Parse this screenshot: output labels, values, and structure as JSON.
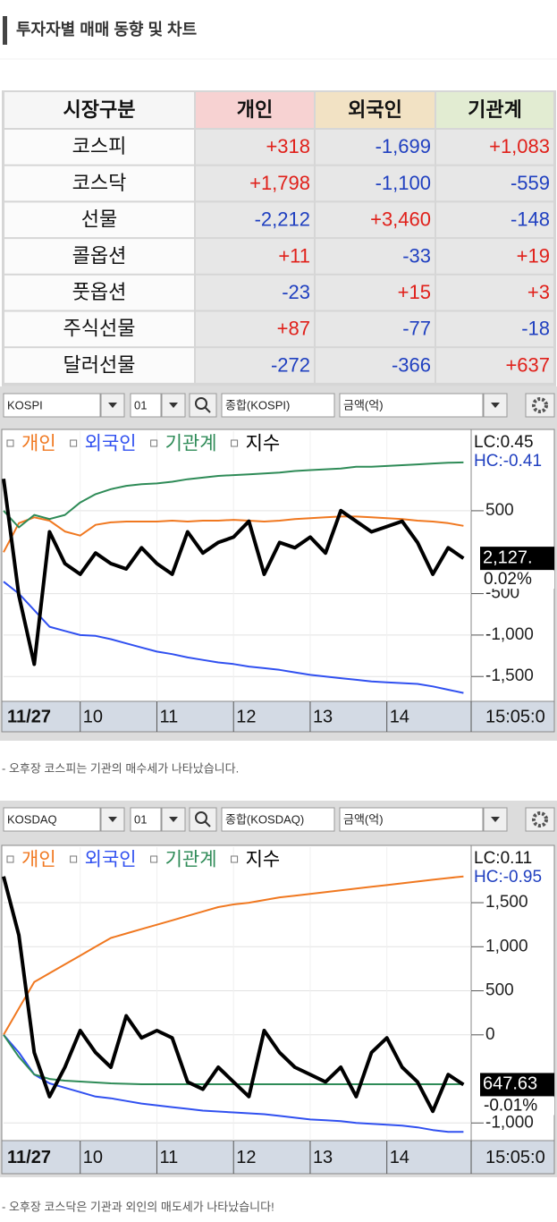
{
  "header": {
    "title": "투자자별 매매 동향 및 차트"
  },
  "table": {
    "columns": [
      "시장구분",
      "개인",
      "외국인",
      "기관계"
    ],
    "rows": [
      [
        "코스피",
        "+318",
        "-1,699",
        "+1,083"
      ],
      [
        "코스닥",
        "+1,798",
        "-1,100",
        "-559"
      ],
      [
        "선물",
        "-2,212",
        "+3,460",
        "-148"
      ],
      [
        "콜옵션",
        "+11",
        "-33",
        "+19"
      ],
      [
        "풋옵션",
        "-23",
        "+15",
        "+3"
      ],
      [
        "주식선물",
        "+87",
        "-77",
        "-18"
      ],
      [
        "달러선물",
        "-272",
        "-366",
        "+637"
      ]
    ]
  },
  "toolbars": [
    {
      "market": "KOSPI",
      "period": "01",
      "index_name": "종합(KOSPI)",
      "unit": "금액(억)"
    },
    {
      "market": "KOSDAQ",
      "period": "01",
      "index_name": "종합(KOSDAQ)",
      "unit": "금액(억)"
    }
  ],
  "chart_data": [
    {
      "type": "line",
      "x": [
        9.0,
        9.2,
        9.4,
        9.6,
        9.8,
        10.0,
        10.2,
        10.4,
        10.6,
        10.8,
        11.0,
        11.2,
        11.4,
        11.6,
        11.8,
        12.0,
        12.2,
        12.4,
        12.6,
        12.8,
        13.0,
        13.2,
        13.4,
        13.6,
        13.8,
        14.0,
        14.2,
        14.4,
        14.6,
        14.8,
        15.0
      ],
      "xlim": [
        9,
        15.1
      ],
      "xticks": [
        10,
        11,
        12,
        13,
        14
      ],
      "ylim": [
        -1800,
        1460
      ],
      "yticks": [
        500,
        -500,
        {
          "value": -1000,
          "label": "-1,000"
        },
        {
          "value": -1500,
          "label": "-1,500"
        }
      ],
      "y2lim": [
        2100,
        2151
      ],
      "grid": true,
      "date_label": "11/27",
      "time_label": "15:05:0",
      "lc_label": "LC:0.45",
      "hc_label": "HC:-0.41",
      "last_label": "2,127.",
      "change_label": "0.02%",
      "series": [
        {
          "name": "개인",
          "color": "#f07820",
          "values": [
            0,
            350,
            420,
            380,
            250,
            200,
            330,
            360,
            370,
            370,
            370,
            380,
            370,
            380,
            380,
            390,
            380,
            370,
            380,
            400,
            410,
            420,
            430,
            430,
            420,
            410,
            400,
            380,
            370,
            350,
            318
          ]
        },
        {
          "name": "외국인",
          "color": "#3050f0",
          "values": [
            -356,
            -500,
            -700,
            -900,
            -950,
            -1000,
            -1010,
            -1050,
            -1100,
            -1150,
            -1200,
            -1230,
            -1270,
            -1300,
            -1330,
            -1350,
            -1380,
            -1400,
            -1420,
            -1450,
            -1480,
            -1500,
            -1520,
            -1540,
            -1560,
            -1570,
            -1580,
            -1590,
            -1620,
            -1660,
            -1699
          ]
        },
        {
          "name": "기관계",
          "color": "#2e8b57",
          "values": [
            500,
            300,
            450,
            400,
            450,
            600,
            700,
            760,
            800,
            820,
            830,
            850,
            880,
            900,
            920,
            930,
            940,
            950,
            960,
            980,
            990,
            1000,
            1010,
            1030,
            1030,
            1040,
            1050,
            1060,
            1070,
            1080,
            1083
          ]
        },
        {
          "name": "지수",
          "color": "#000000",
          "axis": "y2",
          "values": [
            2142,
            2120,
            2107,
            2132,
            2126,
            2124,
            2128,
            2126,
            2125,
            2129,
            2126,
            2124,
            2132,
            2128,
            2130,
            2131,
            2134,
            2124,
            2130,
            2129,
            2131,
            2128,
            2136,
            2134,
            2132,
            2133,
            2134,
            2130,
            2124,
            2129,
            2127
          ]
        }
      ]
    },
    {
      "type": "line",
      "x": [
        9.0,
        9.2,
        9.4,
        9.6,
        9.8,
        10.0,
        10.2,
        10.4,
        10.6,
        10.8,
        11.0,
        11.2,
        11.4,
        11.6,
        11.8,
        12.0,
        12.2,
        12.4,
        12.6,
        12.8,
        13.0,
        13.2,
        13.4,
        13.6,
        13.8,
        14.0,
        14.2,
        14.4,
        14.6,
        14.8,
        15.0
      ],
      "xlim": [
        9,
        15.1
      ],
      "xticks": [
        10,
        11,
        12,
        13,
        14
      ],
      "ylim": [
        -1200,
        2130
      ],
      "yticks": [
        {
          "value": 1500,
          "label": "1,500"
        },
        {
          "value": 1000,
          "label": "1,000"
        },
        500,
        0,
        {
          "value": -1000,
          "label": "-1,000"
        }
      ],
      "y2lim": [
        640,
        680
      ],
      "grid": true,
      "date_label": "11/27",
      "time_label": "15:05:0",
      "lc_label": "LC:0.11",
      "hc_label": "HC:-0.95",
      "last_label": "647.63",
      "change_label": "-0.01%",
      "series": [
        {
          "name": "개인",
          "color": "#f07820",
          "values": [
            0,
            300,
            600,
            700,
            800,
            900,
            1000,
            1100,
            1150,
            1200,
            1250,
            1300,
            1350,
            1400,
            1450,
            1480,
            1500,
            1530,
            1560,
            1580,
            1600,
            1620,
            1640,
            1660,
            1680,
            1700,
            1720,
            1740,
            1760,
            1780,
            1798
          ]
        },
        {
          "name": "외국인",
          "color": "#3050f0",
          "values": [
            0,
            -200,
            -450,
            -550,
            -600,
            -650,
            -700,
            -720,
            -750,
            -780,
            -800,
            -820,
            -840,
            -860,
            -870,
            -880,
            -890,
            -900,
            -920,
            -940,
            -960,
            -970,
            -980,
            -1000,
            -1010,
            -1020,
            -1030,
            -1050,
            -1080,
            -1100,
            -1100
          ]
        },
        {
          "name": "기관계",
          "color": "#2e8b57",
          "values": [
            0,
            -250,
            -450,
            -500,
            -520,
            -530,
            -540,
            -550,
            -555,
            -560,
            -560,
            -560,
            -560,
            -560,
            -560,
            -560,
            -560,
            -560,
            -560,
            -560,
            -560,
            -560,
            -560,
            -560,
            -560,
            -560,
            -560,
            -560,
            -560,
            -560,
            -559
          ]
        },
        {
          "name": "지수",
          "color": "#000000",
          "axis": "y2",
          "values": [
            676,
            668,
            652,
            646,
            650,
            655,
            652,
            650,
            657,
            654,
            655,
            654,
            648,
            647,
            650,
            648,
            646,
            655,
            652,
            650,
            649,
            648,
            650,
            646,
            652,
            654,
            650,
            648,
            644,
            649,
            647.63
          ]
        }
      ]
    }
  ],
  "captions": [
    "- 오후장 코스피는 기관의 매수세가 나타났습니다.",
    "- 오후장 코스닥은 기관과 외인의 매도세가 나타났습니다!"
  ]
}
